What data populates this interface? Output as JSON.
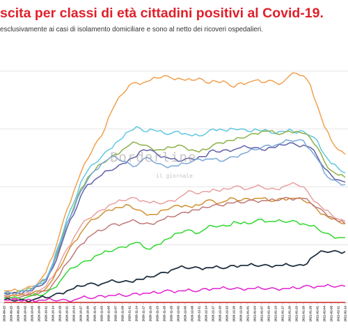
{
  "title": "scita per classi di età cittadini positivi al Covid-19.",
  "subtitle": "esclusivamente ai casi di isolamento domiciliare e sono al netto dei ricoveri ospedalieri.",
  "watermark": {
    "main": "Borderline",
    "sub": "il giornale"
  },
  "chart_data": {
    "type": "line",
    "x_ticks": [
      "2020-09-22",
      "2020-09-25",
      "2020-09-29",
      "2020-10-02",
      "2020-10-05",
      "2020-10-08",
      "2020-10-11",
      "2020-10-14",
      "2020-10-18",
      "2020-10-21",
      "2020-10-24",
      "2020-10-27",
      "2020-10-30",
      "2020-11-01",
      "2020-11-03",
      "2020-11-05",
      "2020-11-07",
      "2020-11-09",
      "2020-11-11",
      "2020-11-14",
      "2020-11-17",
      "2020-11-20",
      "2020-11-23",
      "2020-11-26",
      "2020-11-29",
      "2020-12-02",
      "2020-12-05",
      "2020-12-08",
      "2020-12-11",
      "2020-12-14",
      "2020-12-17",
      "2020-12-20",
      "2020-12-23",
      "2020-12-26",
      "2020-12-29",
      "2021-01-01",
      "2021-01-04",
      "2021-01-07",
      "2021-01-10",
      "2021-01-13",
      "2021-01-17",
      "2021-01-20",
      "2021-01-23",
      "2021-01-26",
      "2021-01-29",
      "2021-02-01",
      "2021-02-04",
      "2021-02-08",
      "2021-02-11",
      "2021-02-14"
    ],
    "y_range": [
      0,
      1
    ],
    "grid": true,
    "series": [
      {
        "color": "#f0a050",
        "values": [
          0.05,
          0.05,
          0.05,
          0.06,
          0.07,
          0.09,
          0.13,
          0.2,
          0.3,
          0.4,
          0.48,
          0.56,
          0.62,
          0.68,
          0.72,
          0.8,
          0.86,
          0.9,
          0.94,
          0.95,
          0.95,
          0.96,
          0.97,
          0.98,
          0.97,
          0.97,
          0.96,
          0.96,
          0.97,
          0.95,
          0.96,
          0.95,
          0.95,
          0.93,
          0.95,
          0.95,
          0.96,
          0.95,
          0.96,
          0.95,
          0.95,
          0.98,
          0.99,
          0.98,
          0.94,
          0.85,
          0.76,
          0.7,
          0.66,
          0.64
        ]
      },
      {
        "color": "#60c8e0",
        "values": [
          0.04,
          0.04,
          0.04,
          0.05,
          0.06,
          0.08,
          0.1,
          0.17,
          0.26,
          0.36,
          0.43,
          0.52,
          0.57,
          0.6,
          0.63,
          0.66,
          0.69,
          0.71,
          0.74,
          0.76,
          0.74,
          0.75,
          0.74,
          0.73,
          0.73,
          0.74,
          0.73,
          0.72,
          0.72,
          0.73,
          0.75,
          0.75,
          0.74,
          0.75,
          0.75,
          0.74,
          0.75,
          0.74,
          0.74,
          0.73,
          0.74,
          0.75,
          0.73,
          0.74,
          0.72,
          0.7,
          0.64,
          0.6,
          0.58,
          0.56
        ]
      },
      {
        "color": "#8db048",
        "values": [
          0.04,
          0.04,
          0.05,
          0.05,
          0.06,
          0.08,
          0.1,
          0.16,
          0.24,
          0.34,
          0.41,
          0.49,
          0.54,
          0.57,
          0.6,
          0.62,
          0.64,
          0.66,
          0.68,
          0.69,
          0.68,
          0.67,
          0.66,
          0.66,
          0.67,
          0.68,
          0.67,
          0.66,
          0.65,
          0.66,
          0.68,
          0.69,
          0.7,
          0.7,
          0.71,
          0.72,
          0.73,
          0.74,
          0.74,
          0.73,
          0.73,
          0.74,
          0.74,
          0.73,
          0.71,
          0.67,
          0.61,
          0.57,
          0.55,
          0.54
        ]
      },
      {
        "color": "#6060a8",
        "values": [
          0.04,
          0.04,
          0.04,
          0.05,
          0.05,
          0.07,
          0.09,
          0.15,
          0.23,
          0.32,
          0.38,
          0.46,
          0.51,
          0.53,
          0.55,
          0.57,
          0.58,
          0.6,
          0.62,
          0.63,
          0.66,
          0.66,
          0.64,
          0.63,
          0.62,
          0.61,
          0.62,
          0.62,
          0.63,
          0.63,
          0.66,
          0.65,
          0.66,
          0.66,
          0.67,
          0.67,
          0.67,
          0.66,
          0.67,
          0.67,
          0.68,
          0.69,
          0.68,
          0.68,
          0.67,
          0.63,
          0.58,
          0.55,
          0.53,
          0.52
        ]
      },
      {
        "color": "#7aa8d8",
        "values": [
          0.04,
          0.04,
          0.04,
          0.05,
          0.06,
          0.08,
          0.1,
          0.16,
          0.25,
          0.34,
          0.4,
          0.48,
          0.53,
          0.57,
          0.6,
          0.62,
          0.63,
          0.61,
          0.6,
          0.59,
          0.62,
          0.62,
          0.6,
          0.59,
          0.59,
          0.59,
          0.6,
          0.61,
          0.62,
          0.62,
          0.62,
          0.61,
          0.62,
          0.63,
          0.64,
          0.65,
          0.66,
          0.67,
          0.68,
          0.68,
          0.69,
          0.7,
          0.7,
          0.7,
          0.66,
          0.62,
          0.56,
          0.53,
          0.52,
          0.51
        ]
      },
      {
        "color": "#e8a0a0",
        "values": [
          0.03,
          0.03,
          0.03,
          0.04,
          0.04,
          0.05,
          0.07,
          0.11,
          0.17,
          0.23,
          0.28,
          0.33,
          0.36,
          0.38,
          0.4,
          0.42,
          0.43,
          0.44,
          0.45,
          0.45,
          0.44,
          0.43,
          0.43,
          0.43,
          0.44,
          0.45,
          0.47,
          0.48,
          0.47,
          0.48,
          0.49,
          0.48,
          0.49,
          0.5,
          0.5,
          0.49,
          0.5,
          0.5,
          0.49,
          0.49,
          0.5,
          0.51,
          0.51,
          0.5,
          0.46,
          0.43,
          0.4,
          0.38,
          0.36,
          0.35
        ]
      },
      {
        "color": "#d09030",
        "values": [
          0.03,
          0.03,
          0.03,
          0.03,
          0.04,
          0.05,
          0.06,
          0.1,
          0.15,
          0.21,
          0.26,
          0.3,
          0.34,
          0.36,
          0.38,
          0.4,
          0.41,
          0.41,
          0.42,
          0.4,
          0.39,
          0.38,
          0.38,
          0.4,
          0.41,
          0.42,
          0.42,
          0.41,
          0.42,
          0.44,
          0.44,
          0.43,
          0.44,
          0.45,
          0.44,
          0.45,
          0.45,
          0.45,
          0.44,
          0.44,
          0.45,
          0.45,
          0.45,
          0.44,
          0.43,
          0.4,
          0.38,
          0.36,
          0.35,
          0.34
        ]
      },
      {
        "color": "#c07878",
        "values": [
          0.02,
          0.02,
          0.02,
          0.03,
          0.03,
          0.04,
          0.05,
          0.08,
          0.12,
          0.17,
          0.21,
          0.25,
          0.28,
          0.3,
          0.31,
          0.33,
          0.34,
          0.34,
          0.35,
          0.35,
          0.34,
          0.34,
          0.35,
          0.36,
          0.37,
          0.38,
          0.39,
          0.4,
          0.4,
          0.41,
          0.42,
          0.42,
          0.43,
          0.43,
          0.43,
          0.44,
          0.44,
          0.44,
          0.44,
          0.44,
          0.45,
          0.45,
          0.45,
          0.45,
          0.43,
          0.41,
          0.39,
          0.37,
          0.35,
          0.34
        ]
      },
      {
        "color": "#30d830",
        "values": [
          0.02,
          0.02,
          0.02,
          0.02,
          0.03,
          0.03,
          0.04,
          0.06,
          0.09,
          0.13,
          0.15,
          0.17,
          0.18,
          0.2,
          0.21,
          0.22,
          0.23,
          0.24,
          0.25,
          0.26,
          0.24,
          0.23,
          0.25,
          0.27,
          0.28,
          0.3,
          0.31,
          0.31,
          0.3,
          0.32,
          0.33,
          0.33,
          0.33,
          0.35,
          0.34,
          0.34,
          0.35,
          0.36,
          0.35,
          0.35,
          0.35,
          0.35,
          0.35,
          0.34,
          0.33,
          0.32,
          0.3,
          0.29,
          0.28,
          0.28
        ]
      },
      {
        "color": "#203040",
        "values": [
          0.01,
          0.01,
          0.01,
          0.01,
          0.01,
          0.02,
          0.02,
          0.03,
          0.04,
          0.05,
          0.06,
          0.07,
          0.08,
          0.08,
          0.08,
          0.09,
          0.09,
          0.09,
          0.09,
          0.1,
          0.1,
          0.11,
          0.12,
          0.13,
          0.14,
          0.15,
          0.15,
          0.15,
          0.15,
          0.15,
          0.15,
          0.15,
          0.15,
          0.16,
          0.16,
          0.16,
          0.16,
          0.16,
          0.16,
          0.16,
          0.16,
          0.16,
          0.16,
          0.16,
          0.19,
          0.21,
          0.22,
          0.22,
          0.22,
          0.22
        ]
      },
      {
        "color": "#e020d0",
        "values": [
          0.01,
          0.01,
          0.01,
          0.01,
          0.01,
          0.01,
          0.01,
          0.01,
          0.01,
          0.01,
          0.01,
          0.02,
          0.02,
          0.02,
          0.03,
          0.03,
          0.03,
          0.03,
          0.03,
          0.04,
          0.04,
          0.04,
          0.04,
          0.05,
          0.05,
          0.05,
          0.05,
          0.05,
          0.05,
          0.06,
          0.06,
          0.06,
          0.06,
          0.06,
          0.06,
          0.06,
          0.06,
          0.06,
          0.06,
          0.06,
          0.06,
          0.06,
          0.06,
          0.07,
          0.07,
          0.07,
          0.07,
          0.07,
          0.07,
          0.07
        ]
      },
      {
        "color": "#d02020",
        "values": [
          0.0,
          0.0,
          0.0,
          0.0,
          0.0,
          0.0,
          0.0,
          0.0,
          0.0,
          0.0,
          0.0,
          0.0,
          0.0,
          0.0,
          0.0,
          0.0,
          0.0,
          0.0,
          0.0,
          0.0,
          0.0,
          0.0,
          0.0,
          0.0,
          0.0,
          0.0,
          0.0,
          0.0,
          0.0,
          0.0,
          0.0,
          0.0,
          0.0,
          0.0,
          0.0,
          0.0,
          0.0,
          0.0,
          0.0,
          0.0,
          0.0,
          0.0,
          0.0,
          0.0,
          0.0,
          0.0,
          0.0,
          0.0,
          0.0,
          0.0
        ]
      }
    ]
  }
}
